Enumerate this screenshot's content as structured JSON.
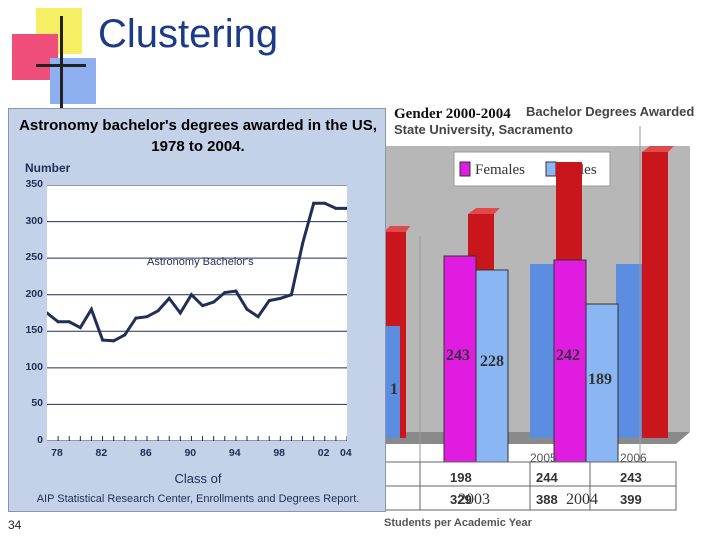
{
  "slide": {
    "title": "Clustering",
    "number": "34"
  },
  "background_chart": {
    "header_line1": "Bachelor Degrees Awarded",
    "header_line2": "State University, Sacramento",
    "overlay_title": "Gender 2000-2004",
    "legend": [
      "Females",
      "Males"
    ],
    "year_labels": [
      "2003",
      "2004",
      "2005",
      "2006"
    ],
    "bar_labels": [
      "243",
      "228",
      "242",
      "189"
    ],
    "partial_label": "1",
    "table_rows": [
      [
        "198",
        "244",
        "243"
      ],
      [
        "329",
        "388",
        "399"
      ]
    ],
    "footer": "Students per Academic Year",
    "colors": {
      "red": "#c8161c",
      "blue": "#5b8de0",
      "magenta": "#e01ce0",
      "lightblue": "#8ab7f4"
    }
  },
  "chart_data": {
    "type": "line",
    "title": "Astronomy bachelor's degrees awarded in the US, 1978 to 2004.",
    "ylabel": "Number",
    "xlabel": "Class of",
    "annotation": "Astronomy Bachelor's",
    "source": "AIP Statistical Research Center, Enrollments and Degrees Report.",
    "ylim": [
      0,
      350
    ],
    "xlim": [
      1978,
      2004
    ],
    "yticks": [
      "0",
      "50",
      "100",
      "150",
      "200",
      "250",
      "300",
      "350"
    ],
    "xticks": [
      "78",
      "82",
      "86",
      "90",
      "94",
      "98",
      "02",
      "04"
    ],
    "xtick_values": [
      1978,
      1982,
      1986,
      1990,
      1994,
      1998,
      2002,
      2004
    ],
    "grid": true,
    "x": [
      1977,
      1978,
      1979,
      1980,
      1981,
      1982,
      1983,
      1984,
      1985,
      1986,
      1987,
      1988,
      1989,
      1990,
      1991,
      1992,
      1993,
      1994,
      1995,
      1996,
      1997,
      1998,
      1999,
      2000,
      2001,
      2002,
      2003,
      2004
    ],
    "series": [
      {
        "values": [
          175,
          163,
          163,
          155,
          180,
          138,
          137,
          145,
          168,
          170,
          178,
          195,
          175,
          200,
          185,
          190,
          203,
          205,
          180,
          170,
          192,
          195,
          200,
          270,
          325,
          325,
          318,
          318
        ]
      }
    ],
    "line_color": "#1f2f55"
  }
}
